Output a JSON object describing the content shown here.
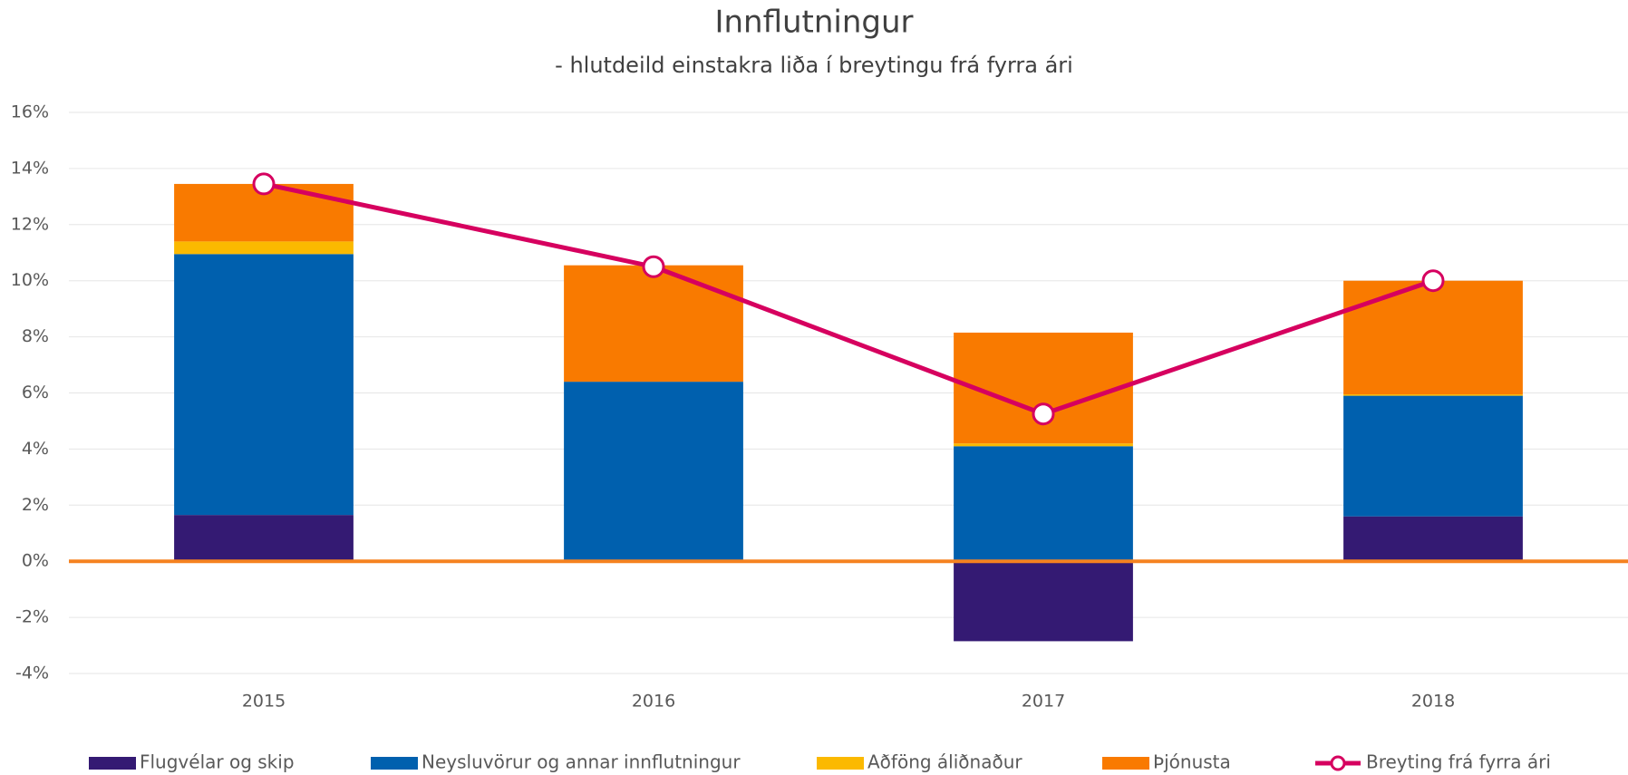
{
  "chart_data": {
    "type": "bar",
    "title": "Innflutningur",
    "subtitle": "- hlutdeild einstakra liða í breytingu frá fyrra ári",
    "categories": [
      "2015",
      "2016",
      "2017",
      "2018"
    ],
    "stacked": true,
    "series": [
      {
        "name": "Flugvélar og skip",
        "color": "#341a73",
        "values": [
          1.65,
          0,
          -2.85,
          1.6
        ]
      },
      {
        "name": "Neysluvörur og annar innflutningur",
        "color": "#0060ae",
        "values": [
          9.3,
          6.4,
          4.1,
          4.3
        ]
      },
      {
        "name": "Aðföng áliðnaður",
        "color": "#fbb900",
        "values": [
          0.45,
          0,
          0.1,
          0.05
        ]
      },
      {
        "name": "Þjónusta",
        "color": "#f97a00",
        "values": [
          2.05,
          4.15,
          3.95,
          4.05
        ]
      },
      {
        "name": "Breyting frá fyrra ári",
        "color": "#d6005f",
        "type": "line",
        "values": [
          13.45,
          10.5,
          5.25,
          10.0
        ]
      }
    ],
    "ylim": [
      -4,
      16
    ],
    "yticks": [
      {
        "value": -4,
        "label": "-4%"
      },
      {
        "value": -2,
        "label": "-2%"
      },
      {
        "value": 0,
        "label": "0%"
      },
      {
        "value": 2,
        "label": "2%"
      },
      {
        "value": 4,
        "label": "4%"
      },
      {
        "value": 6,
        "label": "6%"
      },
      {
        "value": 8,
        "label": "8%"
      },
      {
        "value": 10,
        "label": "10%"
      },
      {
        "value": 12,
        "label": "12%"
      },
      {
        "value": 14,
        "label": "14%"
      },
      {
        "value": 16,
        "label": "16%"
      }
    ],
    "grid": true,
    "legend": "bottom"
  }
}
